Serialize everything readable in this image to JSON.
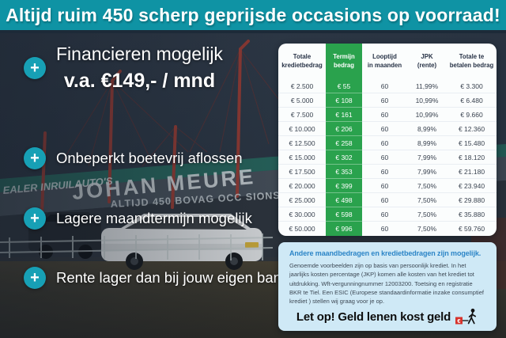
{
  "banner": {
    "text": "Altijd ruim 450 scherp geprijsde occasions op voorraad!"
  },
  "promo": {
    "plus": "+",
    "headline": "Financieren mogelijk",
    "price": "v.a. €149,- / mnd",
    "bullets": [
      "Onbeperkt boetevrij aflossen",
      "Lagere maandtermijn mogelijk",
      "Rente lager dan bij jouw eigen bank"
    ]
  },
  "photo": {
    "sign_small": "EALER INRUILAUTO'S",
    "sign_large": "JOHAN MEURE",
    "sign_sub": "ALTIJD 450 BOVAG OCC SIONS"
  },
  "table": {
    "headers": [
      "Totale\nkredietbedrag",
      "Termijn\nbedrag",
      "Looptijd\nin maanden",
      "JPK\n(rente)",
      "Totale te\nbetalen bedrag"
    ],
    "rows": [
      [
        "€ 2.500",
        "€ 55",
        "60",
        "11,99%",
        "€ 3.300"
      ],
      [
        "€ 5.000",
        "€ 108",
        "60",
        "10,99%",
        "€ 6.480"
      ],
      [
        "€ 7.500",
        "€ 161",
        "60",
        "10,99%",
        "€ 9.660"
      ],
      [
        "€ 10.000",
        "€ 206",
        "60",
        "8,99%",
        "€ 12.360"
      ],
      [
        "€ 12.500",
        "€ 258",
        "60",
        "8,99%",
        "€ 15.480"
      ],
      [
        "€ 15.000",
        "€ 302",
        "60",
        "7,99%",
        "€ 18.120"
      ],
      [
        "€ 17.500",
        "€ 353",
        "60",
        "7,99%",
        "€ 21.180"
      ],
      [
        "€ 20.000",
        "€ 399",
        "60",
        "7,50%",
        "€ 23.940"
      ],
      [
        "€ 25.000",
        "€ 498",
        "60",
        "7,50%",
        "€ 29.880"
      ],
      [
        "€ 30.000",
        "€ 598",
        "60",
        "7,50%",
        "€ 35.880"
      ],
      [
        "€ 50.000",
        "€ 996",
        "60",
        "7,50%",
        "€ 59.760"
      ]
    ]
  },
  "panel": {
    "heading": "Andere maandbedragen en kredietbedragen zijn mogelijk.",
    "body": "Genoemde voorbeelden zijn op basis van persoonlijk krediet. In het jaarlijks kosten percentage (JKP) komen alle kosten van het krediet tot uitdrukking. Wft-vergunningnummer 12003200. Toetsing en registratie BKR te Tiel. Een ESIC (Europese standaardinformatie inzake consumptief krediet ) stellen wij graag voor je op.",
    "warning": "Let op! Geld lenen kost geld",
    "logo_euro": "€"
  },
  "colors": {
    "banner_teal": "#0f93a4",
    "accent_teal": "#17a0b5",
    "table_green": "#2aa24d",
    "panel_blue": "#cfe9f6",
    "heading_blue": "#2c85c7",
    "warning_red": "#d6332c"
  }
}
